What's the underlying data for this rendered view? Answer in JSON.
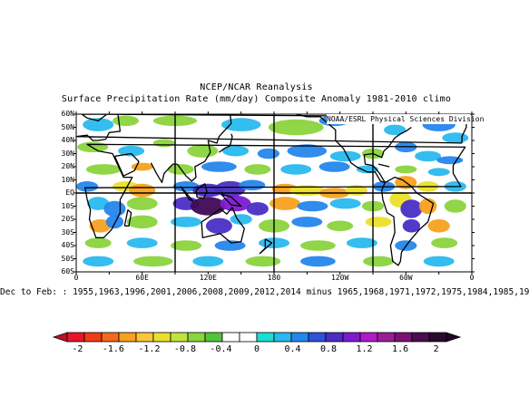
{
  "header": {
    "title": "NCEP/NCAR Reanalysis",
    "subtitle": "Surface Precipitation Rate (mm/day) Composite Anomaly 1981-2010 climo",
    "credit": "NOAA/ESRL Physical Sciences Division"
  },
  "axes": {
    "lat_labels": [
      "60N",
      "50N",
      "40N",
      "30N",
      "20N",
      "10N",
      "EQ",
      "10S",
      "20S",
      "30S",
      "40S",
      "50S",
      "60S"
    ],
    "lon_labels": [
      "0",
      "60E",
      "120E",
      "180",
      "120W",
      "60W",
      "0"
    ]
  },
  "caption": "Dec to Feb: : 1955,1963,1996,2001,2006,2008,2009,2012,2014 minus 1965,1968,1971,1972,1975,1984,1985,19",
  "colorbar": {
    "labels": [
      "-2",
      "-1.6",
      "-1.2",
      "-0.8",
      "-0.4",
      "0",
      "0.4",
      "0.8",
      "1.2",
      "1.6",
      "2"
    ],
    "colors": [
      "#e8152a",
      "#f03c13",
      "#f46a1c",
      "#f7a11d",
      "#f9c63a",
      "#ebe02b",
      "#c3e33c",
      "#8ad43d",
      "#52c53e",
      "#ffffff",
      "#ffffff",
      "#17e0d2",
      "#29b9ee",
      "#2586ec",
      "#2c53d8",
      "#4a2ec5",
      "#7d1ad0",
      "#b11ac9",
      "#991e96",
      "#7a1175",
      "#4a0d4e",
      "#2a0830"
    ]
  },
  "map": {
    "projection": "cylindrical-equidistant",
    "lon_range": [
      0,
      360
    ],
    "lat_range": [
      -60,
      60
    ],
    "anomaly_palette": {
      "strong_dry": "#f03c13",
      "dry": "#f7a11d",
      "mild_dry": "#ebe02b",
      "slight_dry": "#8ad43d",
      "wet": "#29b9ee",
      "wetter": "#2586ec",
      "very_wet": "#4a2ec5",
      "extreme_wet": "#7d1ad0",
      "darkest_wet": "#3f0a55"
    }
  }
}
